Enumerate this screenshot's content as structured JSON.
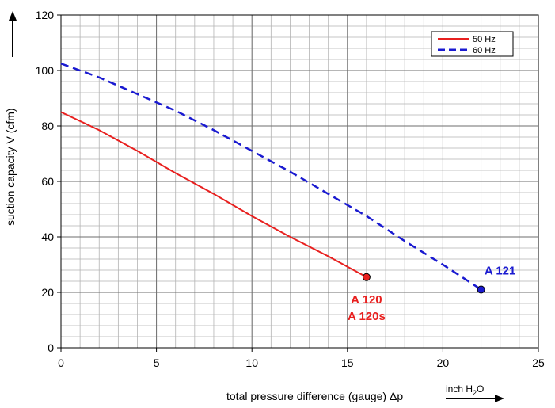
{
  "chart_data": {
    "type": "line",
    "xlabel": "total pressure difference (gauge) Δp",
    "x_unit": {
      "base": "inch H",
      "sub": "2",
      "tail": "O"
    },
    "ylabel": "suction capacity V (cfm)",
    "xlim": [
      0,
      25
    ],
    "ylim": [
      0,
      120
    ],
    "x_ticks": [
      0,
      5,
      10,
      15,
      20,
      25
    ],
    "y_ticks": [
      0,
      20,
      40,
      60,
      80,
      100,
      120
    ],
    "x_minor_step": 1,
    "y_minor_step": 4,
    "grid": true,
    "legend_position": "top-right",
    "series": [
      {
        "name": "50 Hz",
        "color": "#e8201f",
        "style": "solid",
        "x": [
          0,
          2,
          4,
          6,
          8,
          10,
          12,
          14,
          16
        ],
        "y": [
          85,
          78.5,
          71,
          63,
          55.5,
          47.5,
          40,
          33,
          25.5
        ],
        "end_point": {
          "x": 16,
          "y": 25.5
        }
      },
      {
        "name": "60 Hz",
        "color": "#1a1ad0",
        "style": "dashed",
        "x": [
          0,
          2,
          4,
          6,
          8,
          10,
          12,
          14,
          16,
          18,
          20,
          22
        ],
        "y": [
          102.5,
          97.5,
          91.5,
          85.5,
          78.5,
          71,
          63.5,
          55.5,
          47.5,
          38.5,
          30,
          21
        ],
        "end_point": {
          "x": 22,
          "y": 21
        }
      }
    ],
    "annotations": [
      {
        "text": "A 120",
        "x": 16,
        "y": 25.5,
        "color": "#e8201f"
      },
      {
        "text": "A 120s",
        "x": 16,
        "y": 25.5,
        "color": "#e8201f"
      },
      {
        "text": "A 121",
        "x": 22,
        "y": 21,
        "color": "#1a1ad0"
      }
    ]
  }
}
